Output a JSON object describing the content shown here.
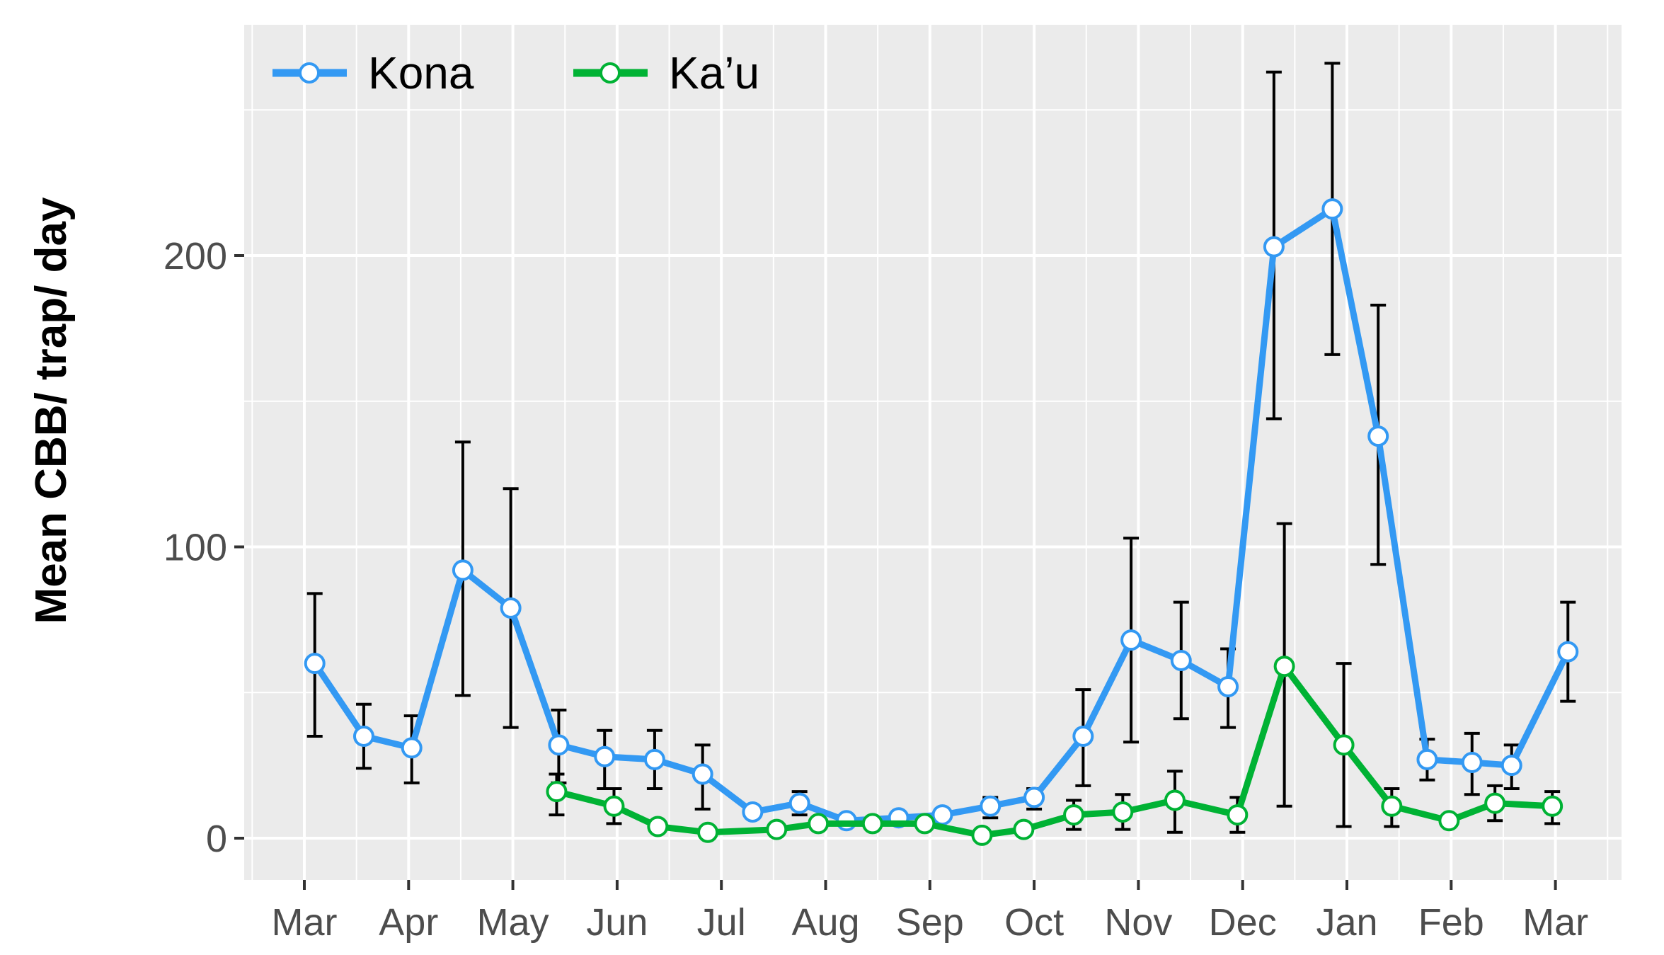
{
  "chart_data": {
    "type": "line",
    "title": "",
    "xlabel": "",
    "ylabel": "Mean CBB/ trap/ day",
    "ylim": [
      -12,
      280
    ],
    "y_ticks": [
      0,
      100,
      200
    ],
    "grid": true,
    "legend_position": "top-left",
    "x_tick_labels": [
      "Mar",
      "Apr",
      "May",
      "Jun",
      "Jul",
      "Aug",
      "Sep",
      "Oct",
      "Nov",
      "Dec",
      "Jan",
      "Feb",
      "Mar"
    ],
    "series": [
      {
        "name": "Kona",
        "color": "#3399f3",
        "points": [
          {
            "x": 0.1,
            "y": 60,
            "lo": 35,
            "hi": 84
          },
          {
            "x": 0.57,
            "y": 35,
            "lo": 24,
            "hi": 46
          },
          {
            "x": 1.03,
            "y": 31,
            "lo": 19,
            "hi": 42
          },
          {
            "x": 1.52,
            "y": 92,
            "lo": 49,
            "hi": 136
          },
          {
            "x": 1.98,
            "y": 79,
            "lo": 38,
            "hi": 120
          },
          {
            "x": 2.44,
            "y": 32,
            "lo": 19,
            "hi": 44
          },
          {
            "x": 2.88,
            "y": 28,
            "lo": 17,
            "hi": 37
          },
          {
            "x": 3.36,
            "y": 27,
            "lo": 17,
            "hi": 37
          },
          {
            "x": 3.82,
            "y": 22,
            "lo": 10,
            "hi": 32
          },
          {
            "x": 4.3,
            "y": 9,
            "lo": 7,
            "hi": 11
          },
          {
            "x": 4.75,
            "y": 12,
            "lo": 8,
            "hi": 16
          },
          {
            "x": 5.2,
            "y": 6,
            "lo": 5,
            "hi": 7
          },
          {
            "x": 5.7,
            "y": 7,
            "lo": 6,
            "hi": 8
          },
          {
            "x": 6.12,
            "y": 8,
            "lo": 6,
            "hi": 10
          },
          {
            "x": 6.58,
            "y": 11,
            "lo": 7,
            "hi": 14
          },
          {
            "x": 7.0,
            "y": 14,
            "lo": 10,
            "hi": 17
          },
          {
            "x": 7.47,
            "y": 35,
            "lo": 18,
            "hi": 51
          },
          {
            "x": 7.93,
            "y": 68,
            "lo": 33,
            "hi": 103
          },
          {
            "x": 8.41,
            "y": 61,
            "lo": 41,
            "hi": 81
          },
          {
            "x": 8.86,
            "y": 52,
            "lo": 38,
            "hi": 65
          },
          {
            "x": 9.3,
            "y": 203,
            "lo": 144,
            "hi": 263
          },
          {
            "x": 9.86,
            "y": 216,
            "lo": 166,
            "hi": 266
          },
          {
            "x": 10.3,
            "y": 138,
            "lo": 94,
            "hi": 183
          },
          {
            "x": 10.77,
            "y": 27,
            "lo": 20,
            "hi": 34
          },
          {
            "x": 11.2,
            "y": 26,
            "lo": 15,
            "hi": 36
          },
          {
            "x": 11.58,
            "y": 25,
            "lo": 17,
            "hi": 32
          },
          {
            "x": 12.12,
            "y": 64,
            "lo": 47,
            "hi": 81
          }
        ]
      },
      {
        "name": "Ka’u",
        "color": "#00b234",
        "points": [
          {
            "x": 2.42,
            "y": 16,
            "lo": 8,
            "hi": 22
          },
          {
            "x": 2.97,
            "y": 11,
            "lo": 5,
            "hi": 17
          },
          {
            "x": 3.39,
            "y": 4,
            "lo": 3,
            "hi": 5
          },
          {
            "x": 3.87,
            "y": 2,
            "lo": 1,
            "hi": 3
          },
          {
            "x": 4.53,
            "y": 3,
            "lo": 2,
            "hi": 4
          },
          {
            "x": 4.93,
            "y": 5,
            "lo": 4,
            "hi": 6
          },
          {
            "x": 5.45,
            "y": 5,
            "lo": 4,
            "hi": 6
          },
          {
            "x": 5.95,
            "y": 5,
            "lo": 4,
            "hi": 6
          },
          {
            "x": 6.5,
            "y": 1,
            "lo": 0,
            "hi": 2
          },
          {
            "x": 6.9,
            "y": 3,
            "lo": 2,
            "hi": 4
          },
          {
            "x": 7.38,
            "y": 8,
            "lo": 3,
            "hi": 13
          },
          {
            "x": 7.85,
            "y": 9,
            "lo": 3,
            "hi": 15
          },
          {
            "x": 8.35,
            "y": 13,
            "lo": 2,
            "hi": 23
          },
          {
            "x": 8.95,
            "y": 8,
            "lo": 2,
            "hi": 14
          },
          {
            "x": 9.4,
            "y": 59,
            "lo": 11,
            "hi": 108
          },
          {
            "x": 9.97,
            "y": 32,
            "lo": 4,
            "hi": 60
          },
          {
            "x": 10.43,
            "y": 11,
            "lo": 4,
            "hi": 17
          },
          {
            "x": 10.98,
            "y": 6,
            "lo": 5,
            "hi": 7
          },
          {
            "x": 11.42,
            "y": 12,
            "lo": 6,
            "hi": 18
          },
          {
            "x": 11.97,
            "y": 11,
            "lo": 5,
            "hi": 16
          }
        ]
      }
    ]
  }
}
